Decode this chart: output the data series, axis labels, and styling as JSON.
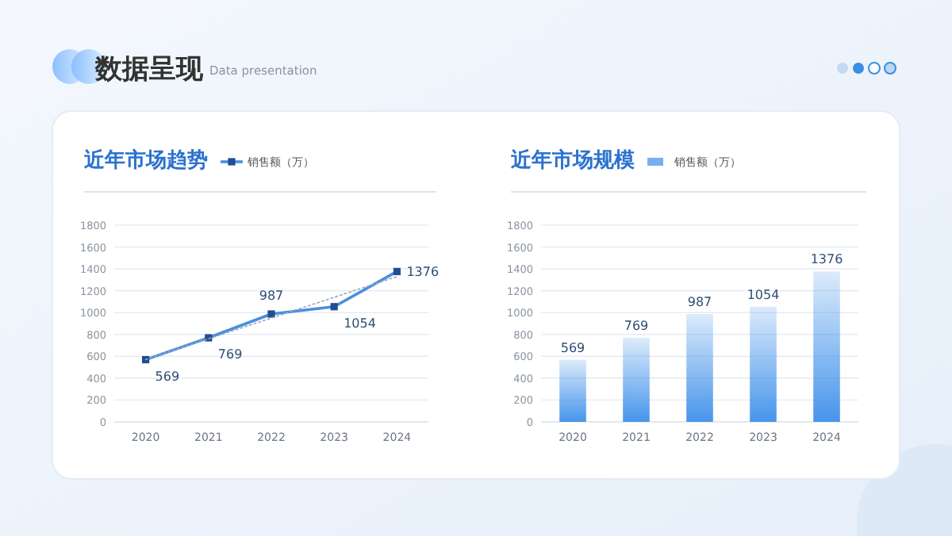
{
  "chart_data": [
    {
      "type": "other",
      "title": "数据呈现",
      "subtitle": "Data presentation"
    },
    {
      "type": "line",
      "title": "近年市场趋势",
      "categories": [
        "2020",
        "2021",
        "2022",
        "2023",
        "2024"
      ],
      "ylim": [
        0,
        1800
      ],
      "yticks": [
        0,
        200,
        400,
        600,
        800,
        1000,
        1200,
        1400,
        1600,
        1800
      ],
      "grid": "y",
      "legend": "top",
      "series": [
        {
          "name": "销售额（万）",
          "color": "#4a8fe0",
          "marker": "square",
          "values": [
            569,
            769,
            987,
            1054,
            1376
          ],
          "value_labels": [
            "569",
            "769",
            "987",
            "1054",
            "1376"
          ]
        },
        {
          "type": "line",
          "values": [
            570,
            760,
            950,
            1140,
            1330
          ],
          "color": "#9aa6b4",
          "line_style": "dotted",
          "marker": "none"
        }
      ]
    },
    {
      "type": "bar",
      "title": "近年市场规模",
      "categories": [
        "2020",
        "2021",
        "2022",
        "2023",
        "2024"
      ],
      "ylim": [
        0,
        1800
      ],
      "yticks": [
        0,
        200,
        400,
        600,
        800,
        1000,
        1200,
        1400,
        1600,
        1800
      ],
      "grid": "y",
      "legend": "top",
      "data_labels": true,
      "series": [
        {
          "name": "销售额（万）",
          "color": "#3d8fea",
          "values": [
            569,
            769,
            987,
            1054,
            1376
          ]
        }
      ]
    }
  ]
}
